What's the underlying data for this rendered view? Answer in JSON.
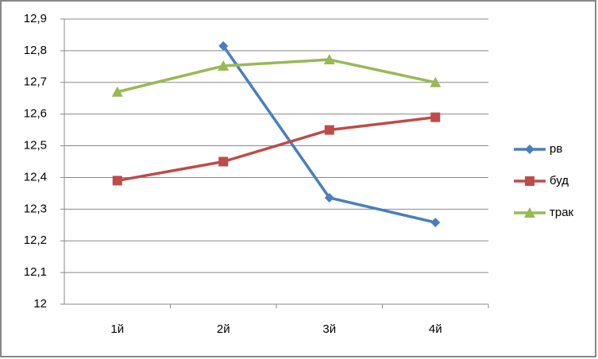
{
  "chart_data": {
    "type": "line",
    "categories": [
      "1й",
      "2й",
      "3й",
      "4й"
    ],
    "series": [
      {
        "name": "рв",
        "color": "#4a7ebb",
        "marker": "diamond",
        "values": [
          null,
          12.815,
          12.336,
          12.258
        ]
      },
      {
        "name": "буд",
        "color": "#be4b48",
        "marker": "square",
        "values": [
          12.39,
          12.45,
          12.55,
          12.59
        ]
      },
      {
        "name": "трак",
        "color": "#98b954",
        "marker": "triangle",
        "values": [
          12.67,
          12.752,
          12.772,
          12.7
        ]
      }
    ],
    "ylim": [
      12,
      12.9
    ],
    "yticks": [
      12,
      {
        "value": 12.1,
        "label": "12,1"
      },
      {
        "value": 12.2,
        "label": "12,2"
      },
      {
        "value": 12.3,
        "label": "12,3"
      },
      {
        "value": 12.4,
        "label": "12,4"
      },
      {
        "value": 12.5,
        "label": "12,5"
      },
      {
        "value": 12.6,
        "label": "12,6"
      },
      {
        "value": 12.7,
        "label": "12,7"
      },
      {
        "value": 12.8,
        "label": "12,8"
      },
      {
        "value": 12.9,
        "label": "12,9"
      }
    ],
    "grid": true,
    "legend": "right"
  }
}
